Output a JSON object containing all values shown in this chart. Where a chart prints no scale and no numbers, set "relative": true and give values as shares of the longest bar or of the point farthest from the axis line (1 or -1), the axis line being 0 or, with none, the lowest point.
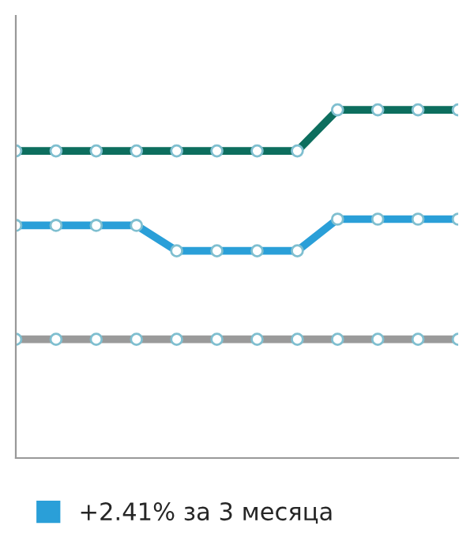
{
  "chart_data": {
    "type": "line",
    "relative": true,
    "legend": "bottom",
    "marker": "circle",
    "line_style": "solid",
    "categories": [
      null,
      null,
      null,
      null,
      null,
      null,
      null,
      null,
      null,
      null,
      null,
      null
    ],
    "series": [
      {
        "color": "#0d6e5e",
        "values": [
          0.882,
          0.882,
          0.882,
          0.882,
          0.882,
          0.882,
          0.882,
          0.882,
          1.0,
          1.0,
          1.0,
          1.0
        ]
      },
      {
        "name": "+2.41% за 3 месяца",
        "color": "#2a9fd8",
        "values": [
          0.668,
          0.668,
          0.668,
          0.668,
          0.595,
          0.595,
          0.595,
          0.595,
          0.686,
          0.686,
          0.686,
          0.686
        ]
      },
      {
        "color": "#9a9a9a",
        "values": [
          0.341,
          0.341,
          0.341,
          0.341,
          0.341,
          0.341,
          0.341,
          0.341,
          0.341,
          0.341,
          0.341,
          0.341
        ]
      }
    ]
  }
}
